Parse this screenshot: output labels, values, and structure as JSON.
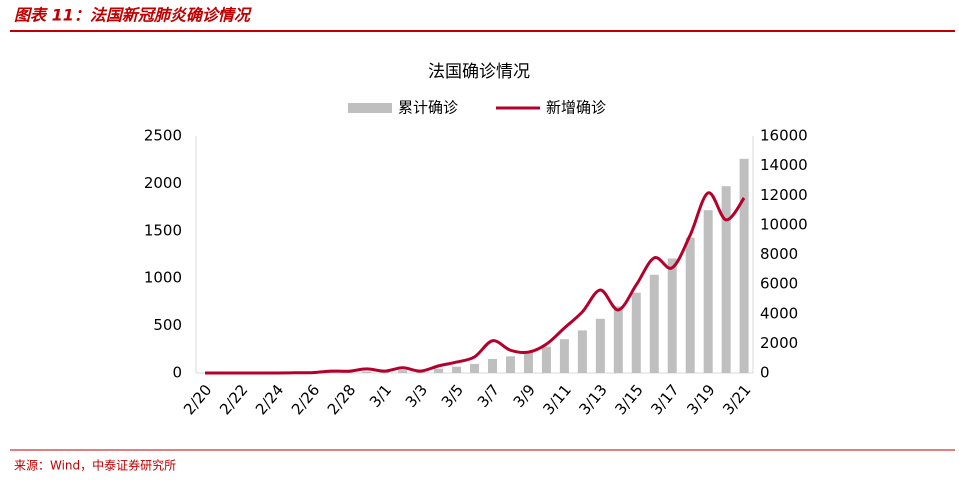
{
  "header": "图表 11：法国新冠肺炎确诊情况",
  "source": "来源：Wind，中泰证券研究所",
  "chart_data": {
    "type": "bar-line",
    "title": "法国确诊情况",
    "categories": [
      "2/20",
      null,
      "2/22",
      null,
      "2/24",
      null,
      "2/26",
      null,
      "2/28",
      null,
      "3/1",
      null,
      "3/3",
      null,
      "3/5",
      null,
      "3/7",
      null,
      "3/9",
      null,
      "3/11",
      null,
      "3/13",
      null,
      "3/15",
      null,
      "3/17",
      null,
      "3/19",
      null,
      "3/21"
    ],
    "series": [
      {
        "name": "累计确诊",
        "type": "bar",
        "axis": "y2",
        "color": "#bfbfbf",
        "values": [
          12,
          12,
          12,
          12,
          12,
          14,
          18,
          38,
          57,
          100,
          130,
          191,
          212,
          285,
          423,
          613,
          949,
          1126,
          1412,
          1784,
          2281,
          2876,
          3661,
          4499,
          5423,
          6633,
          7730,
          9134,
          10995,
          12612,
          14459
        ]
      },
      {
        "name": "新增确诊",
        "type": "line",
        "axis": "y",
        "color": "#b5002b",
        "values": [
          0,
          0,
          0,
          0,
          0,
          2,
          4,
          20,
          19,
          43,
          20,
          55,
          20,
          75,
          115,
          170,
          340,
          240,
          220,
          305,
          475,
          645,
          875,
          665,
          930,
          1215,
          1110,
          1455,
          1900,
          1615,
          1846
        ]
      }
    ],
    "ylim": [
      0,
      2500
    ],
    "yticks": [
      0,
      500,
      1000,
      1500,
      2000,
      2500
    ],
    "y2lim": [
      0,
      16000
    ],
    "y2ticks": [
      0,
      2000,
      4000,
      6000,
      8000,
      10000,
      12000,
      14000,
      16000
    ],
    "legend": "top"
  }
}
